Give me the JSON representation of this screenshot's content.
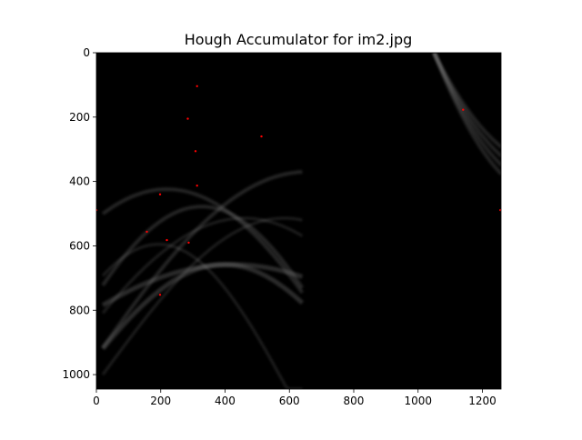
{
  "chart_data": {
    "type": "heatmap",
    "title": "Hough Accumulator for im2.jpg",
    "xlabel": "",
    "ylabel": "",
    "xlim": [
      0,
      1258
    ],
    "ylim": [
      1045,
      0
    ],
    "x_ticks": [
      0,
      200,
      400,
      600,
      800,
      1000,
      1200
    ],
    "y_ticks": [
      0,
      200,
      400,
      600,
      800,
      1000
    ],
    "grid": false,
    "colormap": "gray",
    "peak_marker_color": "#ff0000",
    "peaks": [
      {
        "x": 313,
        "y": 104
      },
      {
        "x": 284,
        "y": 205
      },
      {
        "x": 308,
        "y": 306
      },
      {
        "x": 513,
        "y": 260
      },
      {
        "x": 1140,
        "y": 177
      },
      {
        "x": 198,
        "y": 440
      },
      {
        "x": 313,
        "y": 413
      },
      {
        "x": 0,
        "y": 489
      },
      {
        "x": 1256,
        "y": 489
      },
      {
        "x": 157,
        "y": 556
      },
      {
        "x": 219,
        "y": 582
      },
      {
        "x": 287,
        "y": 590
      },
      {
        "x": 198,
        "y": 752
      }
    ]
  }
}
